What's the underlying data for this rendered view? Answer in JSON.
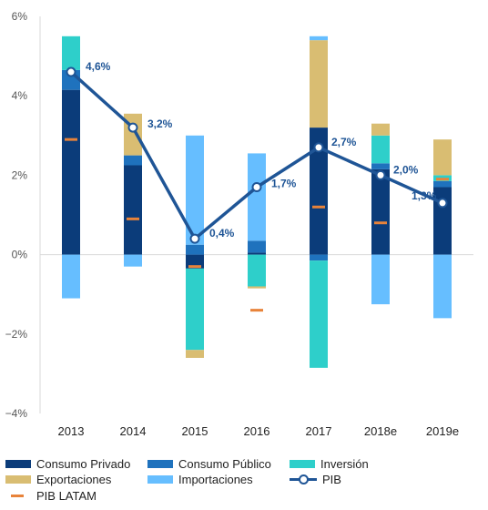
{
  "chart_data": {
    "type": "bar",
    "stacked": true,
    "categories": [
      "2013",
      "2014",
      "2015",
      "2016",
      "2017",
      "2018e",
      "2019e"
    ],
    "ylim": [
      -4,
      6
    ],
    "yticks": [
      -4,
      -2,
      0,
      2,
      4,
      6
    ],
    "ytick_labels": [
      "−4%",
      "−2%",
      "0%",
      "2%",
      "4%",
      "6%"
    ],
    "grid": false,
    "legend_position": "bottom",
    "series": [
      {
        "name": "Consumo Privado",
        "color": "#0b3c7a",
        "values": [
          4.15,
          2.25,
          -0.35,
          0.05,
          3.2,
          2.15,
          1.7
        ]
      },
      {
        "name": "Consumo Público",
        "color": "#1f72bd",
        "values": [
          0.5,
          0.25,
          0.25,
          0.3,
          -0.15,
          0.15,
          0.15
        ]
      },
      {
        "name": "Inversión",
        "color": "#2ecfca",
        "values": [
          0.85,
          0.0,
          -2.05,
          -0.8,
          -2.7,
          0.7,
          0.15
        ]
      },
      {
        "name": "Exportaciones",
        "color": "#d9bd72",
        "values": [
          0.0,
          1.05,
          -0.2,
          -0.05,
          2.2,
          0.3,
          0.9
        ]
      },
      {
        "name": "Importaciones",
        "color": "#66beff",
        "values": [
          -1.1,
          -0.3,
          2.75,
          2.2,
          0.1,
          -1.25,
          -1.6
        ]
      }
    ],
    "pib": {
      "name": "PIB",
      "color": "#1f5596",
      "values": [
        4.6,
        3.2,
        0.4,
        1.7,
        2.7,
        2.0,
        1.3
      ],
      "labels": [
        "4,6%",
        "3,2%",
        "0,4%",
        "1,7%",
        "2,7%",
        "2,0%",
        "1,3%"
      ]
    },
    "pib_latam": {
      "name": "PIB LATAM",
      "color": "#e8833a",
      "values": [
        2.9,
        0.9,
        -0.3,
        -1.4,
        1.2,
        0.8,
        1.9
      ]
    }
  }
}
